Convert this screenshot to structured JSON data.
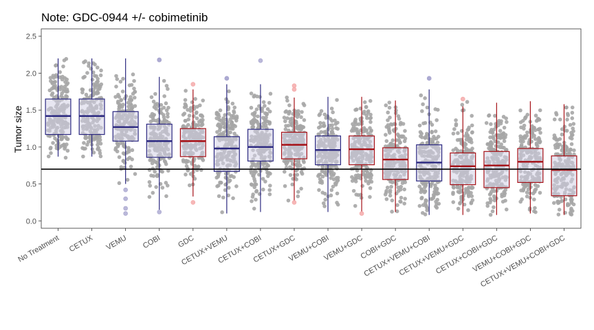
{
  "chart_data": {
    "type": "box",
    "title": "Note: GDC-0944 +/- cobimetinib",
    "ylabel": "Tumor size",
    "xlabel": "",
    "ylim": [
      -0.1,
      2.6
    ],
    "yticks": [
      "0.0",
      "0.5",
      "1.0",
      "1.5",
      "2.0",
      "2.5"
    ],
    "reference_line": 0.7,
    "colors": {
      "box_fill": "#d4d2e5",
      "blue_border": "#2b2880",
      "red_border": "#a50f15",
      "points": "#a6a6a6",
      "outlier_blue": "#a9a6cf",
      "outlier_red": "#f4a5a5",
      "reference_line": "#000000"
    },
    "categories": [
      {
        "label": "No Treatment",
        "color": "blue",
        "whisker_low": 0.87,
        "q1": 1.17,
        "median": 1.42,
        "q3": 1.65,
        "whisker_high": 2.2,
        "outliers": [],
        "pmin": 0.85,
        "pmax": 2.22,
        "n": 180
      },
      {
        "label": "CETUX",
        "color": "blue",
        "whisker_low": 0.87,
        "q1": 1.17,
        "median": 1.42,
        "q3": 1.65,
        "whisker_high": 2.2,
        "outliers": [],
        "pmin": 0.85,
        "pmax": 2.22,
        "n": 180
      },
      {
        "label": "VEMU",
        "color": "blue",
        "whisker_low": 0.5,
        "q1": 1.08,
        "median": 1.27,
        "q3": 1.48,
        "whisker_high": 2.2,
        "outliers": [
          0.1,
          0.17,
          0.3,
          0.42
        ],
        "pmin": 0.45,
        "pmax": 2.2,
        "n": 180
      },
      {
        "label": "COBI",
        "color": "blue",
        "whisker_low": 0.15,
        "q1": 0.86,
        "median": 1.08,
        "q3": 1.31,
        "whisker_high": 1.95,
        "outliers": [
          0.12,
          2.18,
          2.18
        ],
        "pmin": 0.15,
        "pmax": 1.98,
        "n": 180
      },
      {
        "label": "GDC",
        "color": "red",
        "whisker_low": 0.33,
        "q1": 0.87,
        "median": 1.08,
        "q3": 1.25,
        "whisker_high": 1.78,
        "outliers": [
          0.25,
          1.85
        ],
        "pmin": 0.3,
        "pmax": 1.8,
        "n": 180
      },
      {
        "label": "CETUX+VEMU",
        "color": "blue",
        "whisker_low": 0.1,
        "q1": 0.67,
        "median": 0.98,
        "q3": 1.14,
        "whisker_high": 1.85,
        "outliers": [
          1.93,
          1.93
        ],
        "pmin": 0.1,
        "pmax": 1.88,
        "n": 200
      },
      {
        "label": "CETUX+COBI",
        "color": "blue",
        "whisker_low": 0.12,
        "q1": 0.81,
        "median": 1.0,
        "q3": 1.24,
        "whisker_high": 1.85,
        "outliers": [
          2.17
        ],
        "pmin": 0.12,
        "pmax": 2.05,
        "n": 200
      },
      {
        "label": "CETUX+GDC",
        "color": "red",
        "whisker_low": 0.27,
        "q1": 0.84,
        "median": 1.03,
        "q3": 1.2,
        "whisker_high": 1.67,
        "outliers": [
          0.25,
          1.78,
          1.83
        ],
        "pmin": 0.27,
        "pmax": 1.72,
        "n": 200
      },
      {
        "label": "VEMU+COBI",
        "color": "blue",
        "whisker_low": 0.12,
        "q1": 0.76,
        "median": 0.96,
        "q3": 1.15,
        "whisker_high": 1.68,
        "outliers": [],
        "pmin": 0.12,
        "pmax": 1.7,
        "n": 200
      },
      {
        "label": "VEMU+GDC",
        "color": "red",
        "whisker_low": 0.12,
        "q1": 0.76,
        "median": 0.97,
        "q3": 1.15,
        "whisker_high": 1.68,
        "outliers": [
          0.1
        ],
        "pmin": 0.12,
        "pmax": 1.7,
        "n": 200
      },
      {
        "label": "COBI+GDC",
        "color": "red",
        "whisker_low": 0.12,
        "q1": 0.56,
        "median": 0.83,
        "q3": 0.99,
        "whisker_high": 1.63,
        "outliers": [],
        "pmin": 0.12,
        "pmax": 1.63,
        "n": 200
      },
      {
        "label": "CETUX+VEMU+COBI",
        "color": "blue",
        "whisker_low": 0.08,
        "q1": 0.54,
        "median": 0.79,
        "q3": 1.03,
        "whisker_high": 1.78,
        "outliers": [
          1.93,
          1.93
        ],
        "pmin": 0.08,
        "pmax": 1.78,
        "n": 200
      },
      {
        "label": "CETUX+VEMU+GDC",
        "color": "red",
        "whisker_low": 0.08,
        "q1": 0.49,
        "median": 0.74,
        "q3": 0.92,
        "whisker_high": 1.55,
        "outliers": [
          1.65
        ],
        "pmin": 0.08,
        "pmax": 1.62,
        "n": 200
      },
      {
        "label": "CETUX+COBI+GDC",
        "color": "red",
        "whisker_low": 0.08,
        "q1": 0.45,
        "median": 0.75,
        "q3": 0.94,
        "whisker_high": 1.6,
        "outliers": [],
        "pmin": 0.08,
        "pmax": 1.6,
        "n": 200
      },
      {
        "label": "VEMU+COBI+GDC",
        "color": "red",
        "whisker_low": 0.1,
        "q1": 0.52,
        "median": 0.8,
        "q3": 0.98,
        "whisker_high": 1.62,
        "outliers": [],
        "pmin": 0.1,
        "pmax": 1.62,
        "n": 200
      },
      {
        "label": "CETUX+VEMU+COBI+GDC",
        "color": "red",
        "whisker_low": 0.08,
        "q1": 0.34,
        "median": 0.69,
        "q3": 0.88,
        "whisker_high": 1.58,
        "outliers": [],
        "pmin": 0.08,
        "pmax": 1.58,
        "n": 200
      }
    ]
  }
}
